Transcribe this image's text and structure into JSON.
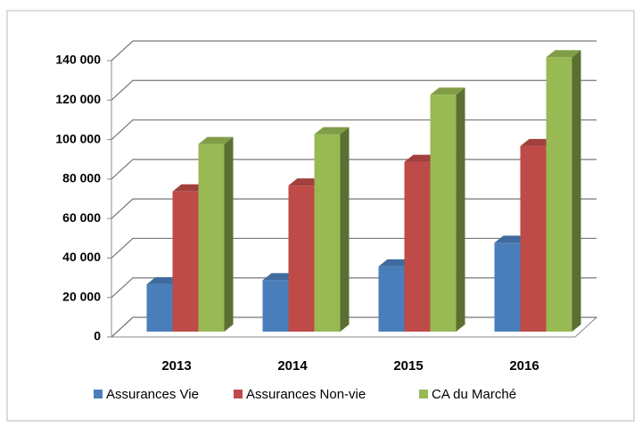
{
  "chart_data": {
    "type": "bar3d",
    "categories": [
      "2013",
      "2014",
      "2015",
      "2016"
    ],
    "series": [
      {
        "name": "Assurances Vie",
        "color": "#4a7ebb",
        "values": [
          24000,
          26000,
          33000,
          45000
        ]
      },
      {
        "name": "Assurances Non-vie",
        "color": "#be4b48",
        "values": [
          71000,
          74000,
          86000,
          94000
        ]
      },
      {
        "name": "CA du Marché",
        "color": "#98b954",
        "values": [
          95000,
          100000,
          120000,
          139000
        ]
      }
    ],
    "ylim": [
      0,
      140000
    ],
    "yticks": [
      0,
      {
        "value": 20000,
        "label": "20 000"
      },
      {
        "value": 40000,
        "label": "40 000"
      },
      {
        "value": 60000,
        "label": "60 000"
      },
      {
        "value": 80000,
        "label": "80 000"
      },
      {
        "value": 100000,
        "label": "100 000"
      },
      {
        "value": 120000,
        "label": "120 000"
      },
      {
        "value": 140000,
        "label": "140 000"
      }
    ],
    "grid": true,
    "legend": "bottom"
  }
}
